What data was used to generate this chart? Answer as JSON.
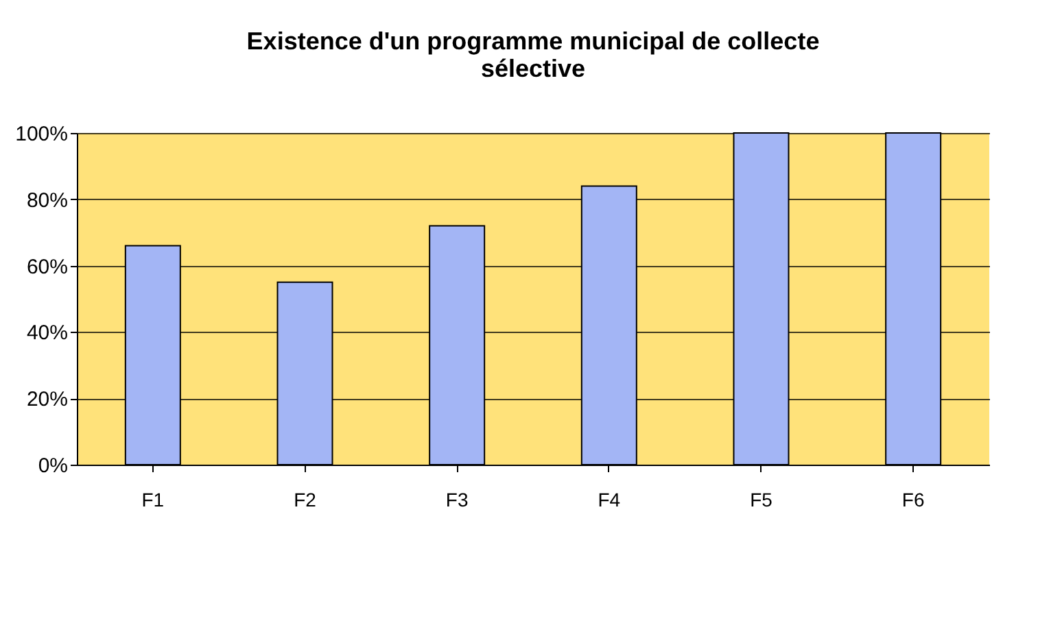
{
  "chart_data": {
    "type": "bar",
    "title": "Existence d'un programme municipal de collecte sélective",
    "categories": [
      "F1",
      "F2",
      "F3",
      "F4",
      "F5",
      "F6"
    ],
    "values": [
      66,
      55,
      72,
      84,
      100,
      100
    ],
    "color": "#a3b5f5",
    "ylim": [
      0,
      100
    ],
    "yticks": [
      {
        "value": 0,
        "label": "0%"
      },
      {
        "value": 20,
        "label": "20%"
      },
      {
        "value": 40,
        "label": "40%"
      },
      {
        "value": 60,
        "label": "60%"
      },
      {
        "value": 80,
        "label": "80%"
      },
      {
        "value": 100,
        "label": "100%"
      }
    ],
    "grid": "y"
  }
}
